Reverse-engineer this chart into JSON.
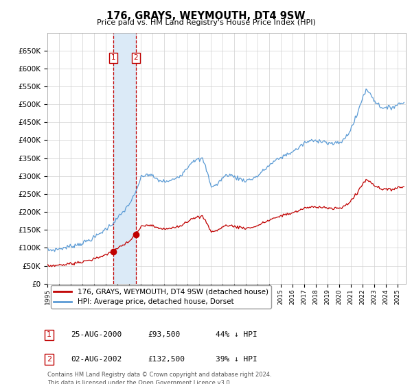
{
  "title": "176, GRAYS, WEYMOUTH, DT4 9SW",
  "subtitle": "Price paid vs. HM Land Registry's House Price Index (HPI)",
  "legend_line1": "176, GRAYS, WEYMOUTH, DT4 9SW (detached house)",
  "legend_line2": "HPI: Average price, detached house, Dorset",
  "sale1_date": "25-AUG-2000",
  "sale1_price": 93500,
  "sale1_pct": "44% ↓ HPI",
  "sale2_date": "02-AUG-2002",
  "sale2_price": 132500,
  "sale2_pct": "39% ↓ HPI",
  "footnote1": "Contains HM Land Registry data © Crown copyright and database right 2024.",
  "footnote2": "This data is licensed under the Open Government Licence v3.0.",
  "hpi_color": "#5b9bd5",
  "property_color": "#c00000",
  "highlight_color": "#dbeaf7",
  "vline_color": "#c00000",
  "grid_color": "#d0d0d0",
  "bg_color": "#ffffff",
  "ylim": [
    0,
    700000
  ],
  "yticks": [
    0,
    50000,
    100000,
    150000,
    200000,
    250000,
    300000,
    350000,
    400000,
    450000,
    500000,
    550000,
    600000,
    650000
  ],
  "xlim_start": 1995.0,
  "xlim_end": 2025.7,
  "sale1_x": 2000.65,
  "sale2_x": 2002.58
}
